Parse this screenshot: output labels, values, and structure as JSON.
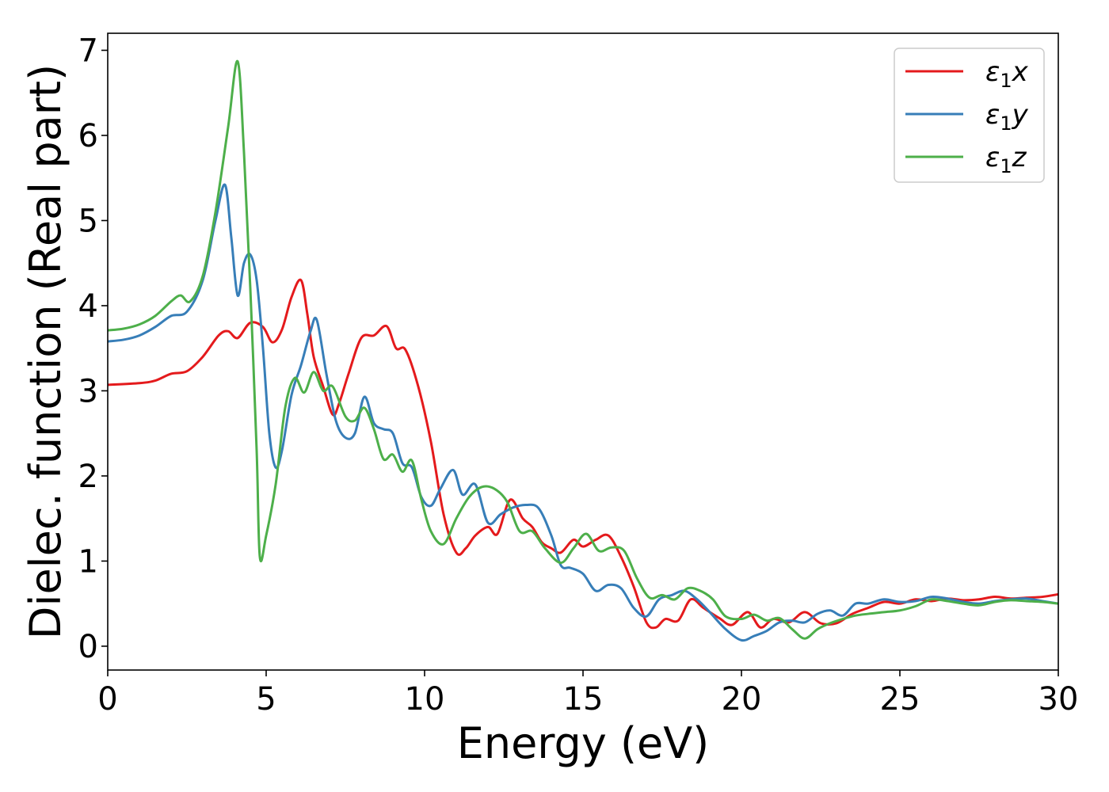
{
  "chart_data": {
    "type": "line",
    "xlabel": "Energy (eV)",
    "ylabel": "Dielec. function (Real part)",
    "xlim": [
      0,
      30
    ],
    "ylim": [
      -0.28,
      7.2
    ],
    "xticks": [
      0,
      5,
      10,
      15,
      20,
      25,
      30
    ],
    "yticks": [
      0,
      1,
      2,
      3,
      4,
      5,
      6,
      7
    ],
    "grid": false,
    "legend_position": "top-right",
    "series": [
      {
        "name": "ε1x",
        "legend_base": "ε",
        "legend_sub": "1",
        "legend_suffix": "x",
        "color": "#e41a1c",
        "points": [
          [
            0,
            3.07
          ],
          [
            1,
            3.09
          ],
          [
            1.5,
            3.12
          ],
          [
            2,
            3.2
          ],
          [
            2.5,
            3.23
          ],
          [
            3,
            3.4
          ],
          [
            3.5,
            3.65
          ],
          [
            3.8,
            3.7
          ],
          [
            4.1,
            3.62
          ],
          [
            4.5,
            3.8
          ],
          [
            4.9,
            3.75
          ],
          [
            5.2,
            3.57
          ],
          [
            5.5,
            3.72
          ],
          [
            5.8,
            4.1
          ],
          [
            6.1,
            4.3
          ],
          [
            6.3,
            3.9
          ],
          [
            6.5,
            3.4
          ],
          [
            6.8,
            3.05
          ],
          [
            7.1,
            2.72
          ],
          [
            7.3,
            2.85
          ],
          [
            7.6,
            3.2
          ],
          [
            8.0,
            3.62
          ],
          [
            8.4,
            3.65
          ],
          [
            8.8,
            3.76
          ],
          [
            9.1,
            3.5
          ],
          [
            9.4,
            3.48
          ],
          [
            9.8,
            3.05
          ],
          [
            10.2,
            2.4
          ],
          [
            10.6,
            1.55
          ],
          [
            11.0,
            1.1
          ],
          [
            11.3,
            1.15
          ],
          [
            11.6,
            1.3
          ],
          [
            12.0,
            1.4
          ],
          [
            12.3,
            1.32
          ],
          [
            12.7,
            1.72
          ],
          [
            13.1,
            1.5
          ],
          [
            13.4,
            1.4
          ],
          [
            13.7,
            1.22
          ],
          [
            14.0,
            1.15
          ],
          [
            14.3,
            1.1
          ],
          [
            14.7,
            1.25
          ],
          [
            15.0,
            1.17
          ],
          [
            15.4,
            1.25
          ],
          [
            15.8,
            1.3
          ],
          [
            16.2,
            1.05
          ],
          [
            16.6,
            0.7
          ],
          [
            17.0,
            0.28
          ],
          [
            17.3,
            0.22
          ],
          [
            17.6,
            0.32
          ],
          [
            18.0,
            0.3
          ],
          [
            18.4,
            0.55
          ],
          [
            18.8,
            0.45
          ],
          [
            19.3,
            0.33
          ],
          [
            19.7,
            0.25
          ],
          [
            20.2,
            0.4
          ],
          [
            20.6,
            0.22
          ],
          [
            21.0,
            0.32
          ],
          [
            21.5,
            0.28
          ],
          [
            22.0,
            0.4
          ],
          [
            22.5,
            0.27
          ],
          [
            23.0,
            0.27
          ],
          [
            23.5,
            0.38
          ],
          [
            24.0,
            0.45
          ],
          [
            24.5,
            0.52
          ],
          [
            25.0,
            0.5
          ],
          [
            25.5,
            0.55
          ],
          [
            26.0,
            0.53
          ],
          [
            26.5,
            0.56
          ],
          [
            27.0,
            0.54
          ],
          [
            27.5,
            0.55
          ],
          [
            28.0,
            0.58
          ],
          [
            28.5,
            0.56
          ],
          [
            29.0,
            0.57
          ],
          [
            29.5,
            0.58
          ],
          [
            30.0,
            0.61
          ]
        ]
      },
      {
        "name": "ε1y",
        "legend_base": "ε",
        "legend_sub": "1",
        "legend_suffix": "y",
        "color": "#377eb8",
        "points": [
          [
            0,
            3.58
          ],
          [
            0.5,
            3.6
          ],
          [
            1,
            3.65
          ],
          [
            1.5,
            3.75
          ],
          [
            2,
            3.88
          ],
          [
            2.5,
            3.93
          ],
          [
            3,
            4.3
          ],
          [
            3.4,
            5.0
          ],
          [
            3.7,
            5.42
          ],
          [
            3.9,
            4.8
          ],
          [
            4.1,
            4.12
          ],
          [
            4.3,
            4.5
          ],
          [
            4.5,
            4.6
          ],
          [
            4.7,
            4.3
          ],
          [
            4.9,
            3.5
          ],
          [
            5.1,
            2.5
          ],
          [
            5.3,
            2.1
          ],
          [
            5.5,
            2.3
          ],
          [
            5.8,
            2.95
          ],
          [
            6.1,
            3.3
          ],
          [
            6.4,
            3.7
          ],
          [
            6.6,
            3.83
          ],
          [
            6.9,
            3.2
          ],
          [
            7.2,
            2.65
          ],
          [
            7.5,
            2.45
          ],
          [
            7.8,
            2.5
          ],
          [
            8.1,
            2.93
          ],
          [
            8.4,
            2.62
          ],
          [
            8.7,
            2.55
          ],
          [
            9.0,
            2.5
          ],
          [
            9.3,
            2.15
          ],
          [
            9.6,
            2.1
          ],
          [
            9.9,
            1.75
          ],
          [
            10.2,
            1.65
          ],
          [
            10.5,
            1.85
          ],
          [
            10.9,
            2.07
          ],
          [
            11.2,
            1.78
          ],
          [
            11.6,
            1.9
          ],
          [
            12.0,
            1.45
          ],
          [
            12.4,
            1.55
          ],
          [
            12.8,
            1.63
          ],
          [
            13.2,
            1.66
          ],
          [
            13.6,
            1.62
          ],
          [
            14.0,
            1.3
          ],
          [
            14.3,
            0.95
          ],
          [
            14.6,
            0.92
          ],
          [
            15.0,
            0.85
          ],
          [
            15.4,
            0.65
          ],
          [
            15.8,
            0.72
          ],
          [
            16.2,
            0.68
          ],
          [
            16.6,
            0.45
          ],
          [
            17.0,
            0.35
          ],
          [
            17.4,
            0.55
          ],
          [
            17.8,
            0.6
          ],
          [
            18.2,
            0.65
          ],
          [
            18.6,
            0.55
          ],
          [
            19.0,
            0.4
          ],
          [
            19.5,
            0.2
          ],
          [
            20.0,
            0.07
          ],
          [
            20.4,
            0.12
          ],
          [
            20.8,
            0.18
          ],
          [
            21.2,
            0.28
          ],
          [
            21.6,
            0.3
          ],
          [
            22.0,
            0.28
          ],
          [
            22.4,
            0.38
          ],
          [
            22.8,
            0.42
          ],
          [
            23.2,
            0.36
          ],
          [
            23.6,
            0.5
          ],
          [
            24.0,
            0.5
          ],
          [
            24.5,
            0.55
          ],
          [
            25.0,
            0.52
          ],
          [
            25.5,
            0.53
          ],
          [
            26.0,
            0.58
          ],
          [
            26.5,
            0.56
          ],
          [
            27.0,
            0.52
          ],
          [
            27.5,
            0.5
          ],
          [
            28.0,
            0.53
          ],
          [
            28.5,
            0.55
          ],
          [
            29.0,
            0.56
          ],
          [
            29.5,
            0.53
          ],
          [
            30.0,
            0.5
          ]
        ]
      },
      {
        "name": "ε1z",
        "legend_base": "ε",
        "legend_sub": "1",
        "legend_suffix": "z",
        "color": "#4daf4a",
        "points": [
          [
            0,
            3.71
          ],
          [
            0.5,
            3.73
          ],
          [
            1,
            3.78
          ],
          [
            1.5,
            3.88
          ],
          [
            2,
            4.05
          ],
          [
            2.3,
            4.12
          ],
          [
            2.6,
            4.05
          ],
          [
            3.0,
            4.35
          ],
          [
            3.4,
            5.1
          ],
          [
            3.8,
            6.1
          ],
          [
            4.1,
            6.87
          ],
          [
            4.3,
            5.8
          ],
          [
            4.5,
            4.2
          ],
          [
            4.7,
            2.3
          ],
          [
            4.8,
            1.05
          ],
          [
            5.0,
            1.3
          ],
          [
            5.3,
            1.9
          ],
          [
            5.6,
            2.8
          ],
          [
            5.9,
            3.15
          ],
          [
            6.2,
            2.98
          ],
          [
            6.5,
            3.22
          ],
          [
            6.8,
            3.0
          ],
          [
            7.1,
            3.05
          ],
          [
            7.5,
            2.7
          ],
          [
            7.8,
            2.65
          ],
          [
            8.1,
            2.8
          ],
          [
            8.4,
            2.55
          ],
          [
            8.7,
            2.2
          ],
          [
            9.0,
            2.25
          ],
          [
            9.3,
            2.05
          ],
          [
            9.6,
            2.18
          ],
          [
            9.9,
            1.72
          ],
          [
            10.2,
            1.35
          ],
          [
            10.6,
            1.2
          ],
          [
            11.0,
            1.5
          ],
          [
            11.4,
            1.75
          ],
          [
            11.8,
            1.87
          ],
          [
            12.2,
            1.85
          ],
          [
            12.6,
            1.7
          ],
          [
            13.0,
            1.35
          ],
          [
            13.4,
            1.35
          ],
          [
            13.8,
            1.15
          ],
          [
            14.3,
            0.98
          ],
          [
            14.7,
            1.15
          ],
          [
            15.1,
            1.32
          ],
          [
            15.5,
            1.12
          ],
          [
            15.9,
            1.16
          ],
          [
            16.3,
            1.12
          ],
          [
            16.7,
            0.8
          ],
          [
            17.1,
            0.57
          ],
          [
            17.5,
            0.6
          ],
          [
            17.9,
            0.55
          ],
          [
            18.3,
            0.68
          ],
          [
            18.7,
            0.65
          ],
          [
            19.1,
            0.55
          ],
          [
            19.5,
            0.35
          ],
          [
            20.0,
            0.32
          ],
          [
            20.4,
            0.37
          ],
          [
            20.8,
            0.3
          ],
          [
            21.2,
            0.33
          ],
          [
            21.6,
            0.2
          ],
          [
            22.0,
            0.09
          ],
          [
            22.4,
            0.2
          ],
          [
            22.8,
            0.27
          ],
          [
            23.2,
            0.32
          ],
          [
            23.6,
            0.36
          ],
          [
            24.0,
            0.38
          ],
          [
            24.5,
            0.4
          ],
          [
            25.0,
            0.42
          ],
          [
            25.5,
            0.47
          ],
          [
            26.0,
            0.55
          ],
          [
            26.5,
            0.53
          ],
          [
            27.0,
            0.5
          ],
          [
            27.5,
            0.48
          ],
          [
            28.0,
            0.52
          ],
          [
            28.5,
            0.54
          ],
          [
            29.0,
            0.53
          ],
          [
            29.5,
            0.52
          ],
          [
            30.0,
            0.5
          ]
        ]
      }
    ]
  }
}
